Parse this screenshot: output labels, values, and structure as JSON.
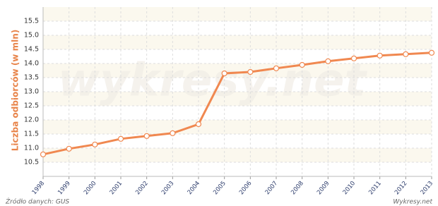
{
  "chart_data": {
    "type": "line",
    "y_label": "Liczba odbiorców (w mln)",
    "source": "Źródło danych:  GUS",
    "brand": "Wykresy.net",
    "watermark": "wykresy.net",
    "categories": [
      "1998",
      "1999",
      "2000",
      "2001",
      "2002",
      "2003",
      "2004",
      "2005",
      "2006",
      "2007",
      "2008",
      "2009",
      "2010",
      "2011",
      "2012",
      "2013"
    ],
    "series": [
      {
        "name": "Liczba odbiorców",
        "color": "#f08850",
        "values": [
          10.78,
          10.98,
          11.13,
          11.33,
          11.43,
          11.53,
          11.85,
          13.65,
          13.7,
          13.83,
          13.95,
          14.08,
          14.18,
          14.28,
          14.33,
          14.38
        ]
      }
    ],
    "ylim": [
      10,
      16
    ],
    "yticks": [
      10.5,
      {
        "value": 11,
        "label": "11.0"
      },
      11.5,
      {
        "value": 12,
        "label": "12.0"
      },
      12.5,
      {
        "value": 13,
        "label": "13.0"
      },
      13.5,
      {
        "value": 14,
        "label": "14.0"
      },
      14.5,
      {
        "value": 15,
        "label": "15.0"
      },
      15.5
    ],
    "grid": true
  }
}
